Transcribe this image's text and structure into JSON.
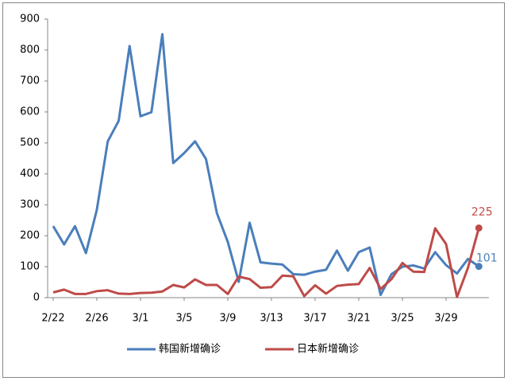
{
  "chart_data": {
    "type": "line",
    "categories": [
      "2/22",
      null,
      null,
      null,
      "2/26",
      null,
      null,
      null,
      "3/1",
      null,
      null,
      null,
      "3/5",
      null,
      null,
      null,
      "3/9",
      null,
      null,
      null,
      "3/13",
      null,
      null,
      null,
      "3/17",
      null,
      null,
      null,
      "3/21",
      null,
      null,
      null,
      "3/25",
      null,
      null,
      null,
      "3/29",
      null,
      null,
      null
    ],
    "series": [
      {
        "name": "韩国新增确诊",
        "color": "#4a7ebb",
        "values": [
          231,
          172,
          231,
          144,
          284,
          505,
          571,
          813,
          586,
          599,
          851,
          435,
          467,
          505,
          448,
          273,
          180,
          51,
          242,
          114,
          110,
          107,
          76,
          74,
          84,
          90,
          152,
          87,
          147,
          162,
          9,
          76,
          100,
          104,
          94,
          147,
          105,
          78,
          125,
          101
        ]
      },
      {
        "name": "日本新增确诊",
        "color": "#be4b48",
        "values": [
          17,
          26,
          12,
          12,
          21,
          24,
          13,
          12,
          15,
          16,
          20,
          41,
          33,
          59,
          41,
          41,
          12,
          68,
          60,
          32,
          34,
          71,
          69,
          5,
          40,
          13,
          38,
          42,
          44,
          96,
          28,
          60,
          112,
          84,
          83,
          224,
          173,
          2,
          96,
          225
        ]
      }
    ],
    "ylim": [
      0,
      900
    ],
    "yticks": [
      0,
      100,
      200,
      300,
      400,
      500,
      600,
      700,
      800,
      900
    ]
  }
}
